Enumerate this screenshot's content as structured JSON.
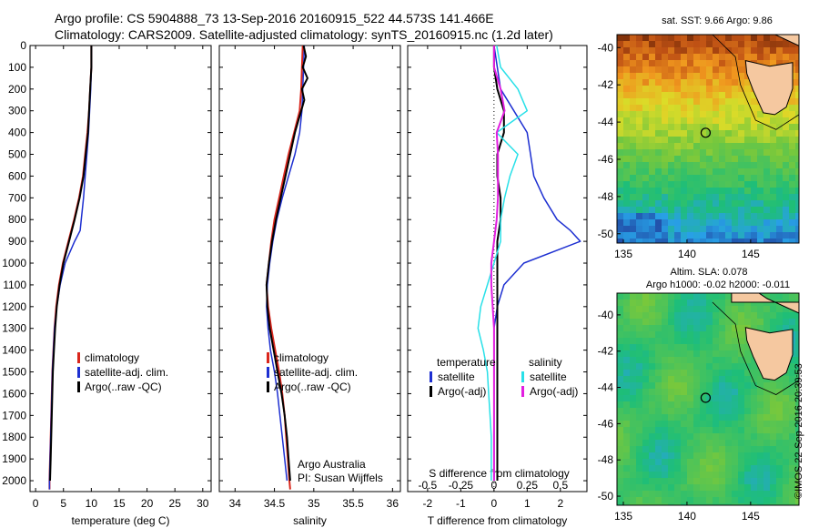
{
  "title_line1": "Argo profile: CS 5904888_73 13-Sep-2016 20160915_522 44.573S 141.466E",
  "title_line2": "Climatology: CARS2009. Satellite-adjusted climatology: synTS_20160915.nc (1.2d later)",
  "footer_watermark": "©IMOS 22-Sep-2016 20:39:53",
  "colors": {
    "climatology": "#d9261c",
    "satellite": "#1d2fd1",
    "argo": "#000000",
    "sat_salinity": "#28e0e8",
    "argo_salinity_adj": "#e21ee0"
  },
  "chart_data": [
    {
      "type": "line",
      "id": "temperature_panel",
      "xlabel": "temperature (deg C)",
      "ylabel": "",
      "xlim": [
        -1,
        31.5
      ],
      "ylim": [
        2050,
        0
      ],
      "xticks": [
        0,
        5,
        10,
        15,
        20,
        25,
        30
      ],
      "yticks": [
        0,
        100,
        200,
        300,
        400,
        500,
        600,
        700,
        800,
        900,
        1000,
        1100,
        1200,
        1300,
        1400,
        1500,
        1600,
        1700,
        1800,
        1900,
        2000
      ],
      "legend": [
        "climatology",
        "satellite-adj. clim.",
        "Argo(..raw -QC)"
      ],
      "series": [
        {
          "name": "climatology",
          "depth": [
            0,
            100,
            200,
            300,
            400,
            500,
            600,
            700,
            800,
            900,
            1000,
            1100,
            1200,
            1300,
            1400,
            1500,
            1600,
            1700,
            1800,
            1900,
            2000,
            2040
          ],
          "values": [
            10.0,
            10.0,
            9.8,
            9.6,
            9.3,
            8.9,
            8.5,
            7.8,
            6.9,
            5.9,
            4.9,
            4.2,
            3.7,
            3.4,
            3.2,
            3.0,
            2.9,
            2.8,
            2.7,
            2.6,
            2.5,
            2.5
          ]
        },
        {
          "name": "satellite-adj. clim.",
          "depth": [
            0,
            100,
            200,
            300,
            400,
            500,
            600,
            700,
            800,
            850,
            900,
            1000,
            1100,
            1200,
            1300,
            1400,
            1500,
            1600,
            1700,
            1800,
            1900,
            2000,
            2040
          ],
          "values": [
            10.0,
            10.0,
            9.9,
            9.7,
            9.5,
            9.2,
            8.9,
            8.6,
            8.2,
            8.0,
            7.0,
            5.3,
            4.4,
            3.8,
            3.4,
            3.2,
            3.0,
            2.9,
            2.8,
            2.7,
            2.6,
            2.5,
            2.5
          ]
        },
        {
          "name": "Argo(..raw -QC)",
          "depth": [
            0,
            100,
            200,
            300,
            400,
            500,
            600,
            700,
            800,
            900,
            1000,
            1100,
            1200,
            1300,
            1400,
            1500,
            1600,
            1700,
            1800,
            1900,
            2000
          ],
          "values": [
            10.0,
            10.0,
            9.8,
            9.6,
            9.4,
            9.0,
            8.6,
            7.9,
            7.0,
            6.0,
            5.0,
            4.3,
            3.8,
            3.5,
            3.3,
            3.1,
            3.0,
            2.9,
            2.8,
            2.7,
            2.6
          ]
        }
      ]
    },
    {
      "type": "line",
      "id": "salinity_panel",
      "xlabel": "salinity",
      "ylabel": "",
      "xlim": [
        33.8,
        36.1
      ],
      "ylim": [
        2050,
        0
      ],
      "xticks": [
        34,
        34.5,
        35,
        35.5,
        36
      ],
      "legend": [
        "climatology",
        "satellite-adj. clim.",
        "Argo(..raw -QC)"
      ],
      "annotation": [
        "Argo Australia",
        "PI: Susan Wijffels"
      ],
      "series": [
        {
          "name": "climatology",
          "depth": [
            0,
            100,
            200,
            300,
            400,
            500,
            600,
            700,
            800,
            900,
            1000,
            1100,
            1200,
            1300,
            1400,
            1500,
            1600,
            1700,
            1800,
            1900,
            2000,
            2040
          ],
          "values": [
            34.86,
            34.85,
            34.84,
            34.82,
            34.75,
            34.68,
            34.62,
            34.56,
            34.5,
            34.46,
            34.43,
            34.4,
            34.42,
            34.46,
            34.51,
            34.56,
            34.6,
            34.63,
            34.65,
            34.67,
            34.69,
            34.7
          ]
        },
        {
          "name": "satellite-adj. clim.",
          "depth": [
            0,
            100,
            200,
            300,
            400,
            500,
            600,
            700,
            800,
            900,
            1000,
            1100,
            1200,
            1300,
            1400,
            1500,
            1600,
            1700,
            1800,
            1900,
            2000
          ],
          "values": [
            34.88,
            34.87,
            34.86,
            34.85,
            34.82,
            34.76,
            34.68,
            34.6,
            34.53,
            34.48,
            34.44,
            34.41,
            34.4,
            34.42,
            34.45,
            34.5,
            34.54,
            34.57,
            34.6,
            34.63,
            34.66
          ]
        },
        {
          "name": "Argo(..raw -QC)",
          "depth": [
            0,
            50,
            100,
            150,
            200,
            250,
            300,
            350,
            400,
            500,
            600,
            700,
            800,
            900,
            1000,
            1100,
            1200,
            1300,
            1400,
            1500,
            1600,
            1700,
            1800,
            1900,
            2000
          ],
          "values": [
            34.87,
            34.9,
            34.86,
            34.92,
            34.85,
            34.88,
            34.84,
            34.8,
            34.76,
            34.7,
            34.64,
            34.58,
            34.52,
            34.47,
            34.43,
            34.4,
            34.41,
            34.44,
            34.49,
            34.54,
            34.59,
            34.63,
            34.66,
            34.68,
            34.7
          ]
        }
      ]
    },
    {
      "type": "line",
      "id": "difference_panel",
      "xlabel": "T difference from climatology",
      "xlabel_top": "S difference from climatology",
      "xlim": [
        -2.6,
        2.8
      ],
      "ylim": [
        2050,
        0
      ],
      "xticks": [
        -2,
        -1,
        0,
        1,
        2
      ],
      "xticks_salinity": [
        -0.5,
        -0.25,
        0,
        0.25,
        0.5
      ],
      "legend": [
        "temperature",
        "satellite",
        "Argo(-adj)",
        "salinity",
        "satellite",
        "Argo(-adj)"
      ],
      "series": [
        {
          "name": "temperature satellite",
          "depth": [
            0,
            100,
            200,
            300,
            400,
            500,
            600,
            700,
            800,
            850,
            900,
            1000,
            1100,
            1200,
            1300,
            1400,
            1500,
            1600,
            1700,
            1800,
            1900,
            2000
          ],
          "values": [
            0.0,
            0.1,
            0.2,
            0.6,
            1.0,
            1.1,
            1.2,
            1.5,
            1.9,
            2.3,
            2.6,
            0.9,
            0.3,
            0.1,
            0.0,
            0.0,
            0.0,
            0.0,
            0.0,
            0.0,
            0.0,
            0.0
          ]
        },
        {
          "name": "temperature Argo(-adj)",
          "depth": [
            0,
            100,
            200,
            300,
            400,
            500,
            600,
            700,
            800,
            900,
            1000,
            1100,
            1200,
            1300,
            1400,
            1500,
            1600,
            1700,
            1800,
            1900,
            2000
          ],
          "values": [
            0.0,
            0.0,
            0.1,
            0.3,
            0.3,
            0.1,
            0.1,
            0.2,
            0.2,
            0.1,
            0.1,
            0.1,
            0.1,
            0.1,
            0.1,
            0.1,
            0.1,
            0.1,
            0.1,
            0.1,
            0.1
          ]
        },
        {
          "name": "salinity satellite",
          "depth": [
            0,
            100,
            200,
            300,
            400,
            500,
            600,
            700,
            800,
            900,
            1000,
            1100,
            1200,
            1300,
            1400,
            1500,
            1600,
            1700,
            1800,
            1900,
            2000
          ],
          "values": [
            0.02,
            0.05,
            0.18,
            0.25,
            0.02,
            0.18,
            0.12,
            0.08,
            0.05,
            0.05,
            0.0,
            -0.05,
            -0.1,
            -0.12,
            -0.08,
            -0.05,
            -0.04,
            -0.03,
            -0.02,
            -0.02,
            -0.02
          ]
        },
        {
          "name": "salinity Argo(-adj)",
          "depth": [
            0,
            100,
            200,
            300,
            400,
            500,
            600,
            700,
            800,
            900,
            1000,
            1100,
            1200,
            1300,
            1400,
            1500,
            1600,
            1700,
            1800,
            1900,
            2000
          ],
          "values": [
            0.0,
            0.0,
            0.05,
            0.08,
            0.02,
            0.03,
            0.03,
            0.03,
            0.02,
            0.0,
            -0.02,
            -0.02,
            -0.01,
            0.0,
            0.0,
            0.0,
            0.0,
            0.0,
            0.0,
            0.0,
            0.0
          ]
        }
      ]
    },
    {
      "type": "heatmap",
      "id": "sst_map",
      "title": "sat. SST: 9.66 Argo: 9.86",
      "xlim": [
        134.5,
        148.8
      ],
      "ylim": [
        -50.5,
        -39.3
      ],
      "xticks": [
        135,
        140,
        145
      ],
      "yticks": [
        -40,
        -42,
        -44,
        -46,
        -48,
        -50
      ],
      "argo_position": {
        "lon": 141.466,
        "lat": -44.573
      }
    },
    {
      "type": "heatmap",
      "id": "sla_map",
      "title": "Altim. SLA: 0.078",
      "subtitle": "Argo h1000: -0.02 h2000: -0.011",
      "xlim": [
        134.5,
        148.8
      ],
      "ylim": [
        -50.5,
        -38.8
      ],
      "xticks": [
        135,
        140,
        145
      ],
      "yticks": [
        -40,
        -42,
        -44,
        -46,
        -48,
        -50
      ],
      "argo_position": {
        "lon": 141.466,
        "lat": -44.573
      }
    }
  ]
}
